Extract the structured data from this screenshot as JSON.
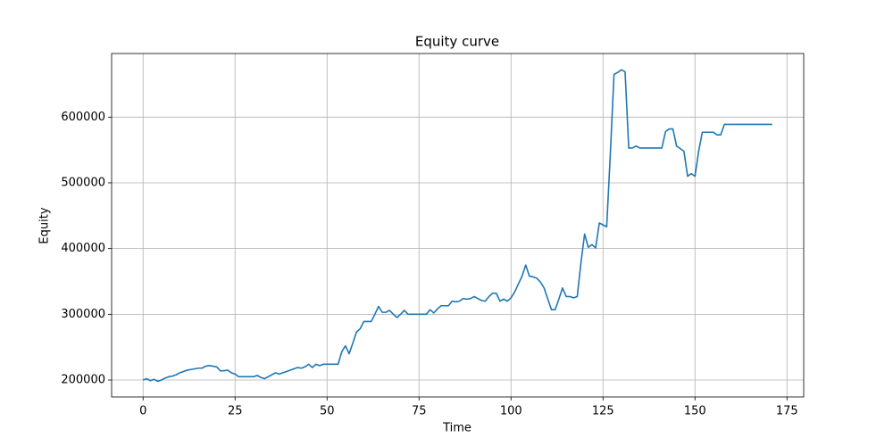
{
  "chart_data": {
    "type": "line",
    "title": "Equity curve",
    "x_label": "Time",
    "y_label": "Equity",
    "x": [
      0,
      1,
      2,
      3,
      4,
      5,
      6,
      7,
      8,
      9,
      10,
      11,
      12,
      13,
      14,
      15,
      16,
      17,
      18,
      19,
      20,
      21,
      22,
      23,
      24,
      25,
      26,
      27,
      28,
      29,
      30,
      31,
      32,
      33,
      34,
      35,
      36,
      37,
      38,
      39,
      40,
      41,
      42,
      43,
      44,
      45,
      46,
      47,
      48,
      49,
      50,
      51,
      52,
      53,
      54,
      55,
      56,
      57,
      58,
      59,
      60,
      61,
      62,
      63,
      64,
      65,
      66,
      67,
      68,
      69,
      70,
      71,
      72,
      73,
      74,
      75,
      76,
      77,
      78,
      79,
      80,
      81,
      82,
      83,
      84,
      85,
      86,
      87,
      88,
      89,
      90,
      91,
      92,
      93,
      94,
      95,
      96,
      97,
      98,
      99,
      100,
      101,
      102,
      103,
      104,
      105,
      106,
      107,
      108,
      109,
      110,
      111,
      112,
      113,
      114,
      115,
      116,
      117,
      118,
      119,
      120,
      121,
      122,
      123,
      124,
      125,
      126,
      127,
      128,
      129,
      130,
      131,
      132,
      133,
      134,
      135,
      136,
      137,
      138,
      139,
      140,
      141,
      142,
      143,
      144,
      145,
      146,
      147,
      148,
      149,
      150,
      151,
      152,
      153,
      154,
      155,
      156,
      157,
      158,
      159,
      160,
      161,
      162,
      163,
      164,
      165,
      166,
      167,
      168,
      169,
      170,
      171
    ],
    "series": [
      {
        "color": "#1f77b4",
        "values": [
          200000,
          202000,
          199000,
          201000,
          198000,
          200000,
          203000,
          205000,
          206000,
          208000,
          211000,
          213000,
          215000,
          216000,
          217000,
          218000,
          218000,
          221000,
          222000,
          221000,
          220000,
          214000,
          214000,
          215000,
          211000,
          209000,
          205000,
          205000,
          205000,
          205000,
          205000,
          207000,
          204000,
          202000,
          205000,
          208000,
          211000,
          209000,
          211000,
          213000,
          215000,
          217000,
          219000,
          218000,
          220000,
          224000,
          219000,
          224000,
          222000,
          224000,
          224000,
          224000,
          224000,
          224000,
          243000,
          252000,
          240000,
          256000,
          273000,
          278000,
          289000,
          289000,
          289000,
          300000,
          312000,
          303000,
          303000,
          306000,
          300000,
          295000,
          300000,
          306000,
          300000,
          300000,
          300000,
          300000,
          300000,
          300000,
          307000,
          302000,
          308000,
          313000,
          313000,
          313000,
          320000,
          319000,
          320000,
          324000,
          323000,
          324000,
          327000,
          324000,
          321000,
          320000,
          327000,
          332000,
          332000,
          320000,
          323000,
          320000,
          325000,
          334000,
          346000,
          358000,
          375000,
          358000,
          357000,
          355000,
          349000,
          340000,
          323000,
          307000,
          307000,
          323000,
          340000,
          327000,
          327000,
          325000,
          327000,
          378000,
          422000,
          402000,
          406000,
          401000,
          439000,
          436000,
          433000,
          545000,
          665000,
          668000,
          672000,
          669000,
          553000,
          553000,
          556000,
          553000,
          553000,
          553000,
          553000,
          553000,
          553000,
          553000,
          578000,
          582000,
          582000,
          556000,
          552000,
          548000,
          510000,
          514000,
          510000,
          548000,
          577000,
          577000,
          577000,
          577000,
          573000,
          573000,
          589000,
          589000,
          589000,
          589000,
          589000,
          589000,
          589000,
          589000,
          589000,
          589000,
          589000,
          589000,
          589000,
          589000
        ]
      }
    ],
    "xlim": [
      -8.55,
      179.55
    ],
    "xticks": [
      0,
      25,
      50,
      75,
      100,
      125,
      150,
      175
    ],
    "ylim": [
      174250,
      696750
    ],
    "yticks": [
      200000,
      300000,
      400000,
      500000,
      600000
    ],
    "grid": true
  }
}
